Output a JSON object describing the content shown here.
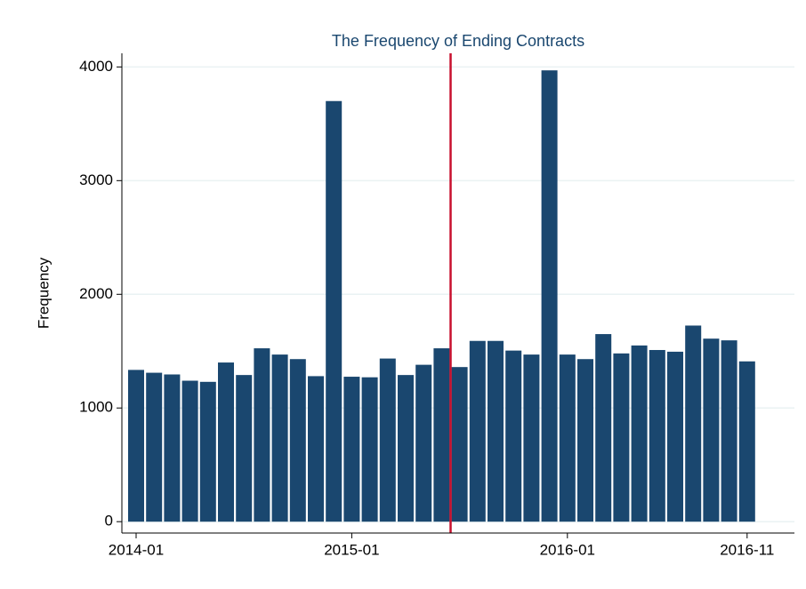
{
  "chart_data": {
    "type": "bar",
    "title": "The Frequency of Ending Contracts",
    "y_label": "Frequency",
    "categories": [
      "2014-01",
      null,
      null,
      null,
      null,
      null,
      null,
      null,
      null,
      null,
      null,
      null,
      "2015-01",
      null,
      null,
      null,
      null,
      null,
      null,
      null,
      null,
      null,
      null,
      null,
      "2016-01",
      null,
      null,
      null,
      null,
      null,
      null,
      null,
      null,
      null,
      "2016-11"
    ],
    "values": [
      1335,
      1310,
      1295,
      1240,
      1230,
      1400,
      1290,
      1525,
      1470,
      1430,
      1280,
      3700,
      1275,
      1270,
      1435,
      1290,
      1380,
      1525,
      1360,
      1590,
      1590,
      1505,
      1470,
      3970,
      1470,
      1430,
      1650,
      1480,
      1550,
      1510,
      1495,
      1725,
      1610,
      1595,
      1410
    ],
    "color": "#1a476f",
    "ylim": [
      -100,
      4120
    ],
    "yticks": [
      0,
      1000,
      2000,
      3000,
      4000
    ],
    "grid": true,
    "reference_line": {
      "x": 17.5,
      "color": "#c8102e"
    }
  }
}
